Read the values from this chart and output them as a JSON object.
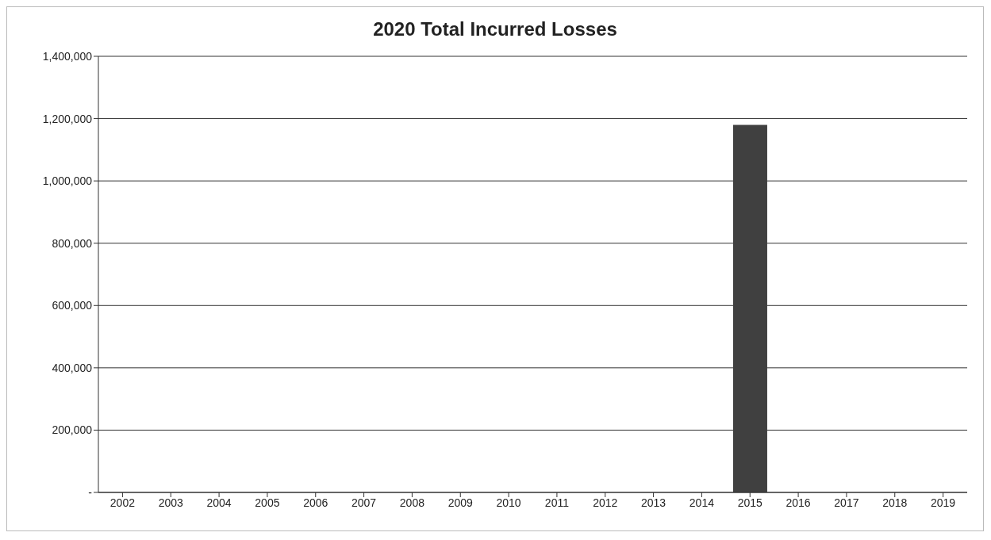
{
  "chart_data": {
    "type": "bar",
    "title": "2020 Total Incurred Losses",
    "categories": [
      "2002",
      "2003",
      "2004",
      "2005",
      "2006",
      "2007",
      "2008",
      "2009",
      "2010",
      "2011",
      "2012",
      "2013",
      "2014",
      "2015",
      "2016",
      "2017",
      "2018",
      "2019"
    ],
    "values": [
      0,
      0,
      0,
      0,
      0,
      0,
      0,
      0,
      0,
      0,
      0,
      0,
      0,
      1180000,
      0,
      0,
      0,
      0
    ],
    "color": "#404040",
    "ylim": [
      0,
      1400000
    ],
    "yticks": [
      {
        "value": 0,
        "label": "-"
      },
      {
        "value": 200000,
        "label": "200,000"
      },
      {
        "value": 400000,
        "label": "400,000"
      },
      {
        "value": 600000,
        "label": "600,000"
      },
      {
        "value": 800000,
        "label": "800,000"
      },
      {
        "value": 1000000,
        "label": "1,000,000"
      },
      {
        "value": 1200000,
        "label": "1,200,000"
      },
      {
        "value": 1400000,
        "label": "1,400,000"
      }
    ],
    "grid": "y"
  }
}
